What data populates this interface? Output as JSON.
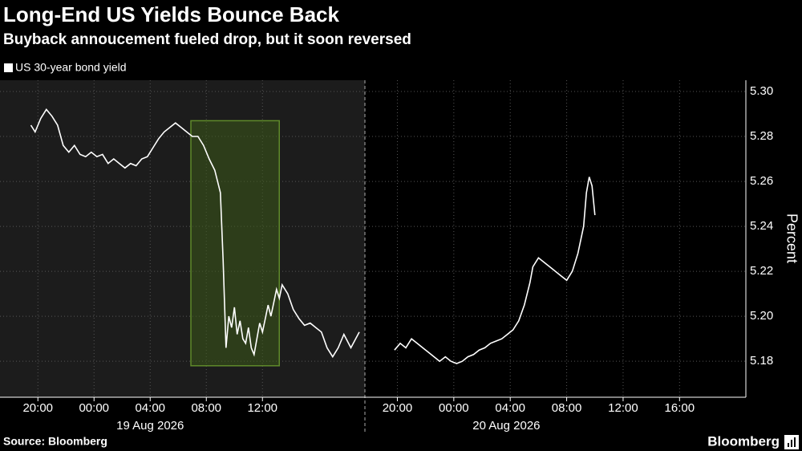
{
  "chart_data": {
    "type": "line",
    "title": "Long-End US Yields Bounce Back",
    "subtitle": "Buyback annoucement fueled drop, but it soon reversed",
    "series_name": "US 30-year bond yield",
    "color": "#ffffff",
    "ylabel": "Percent",
    "source": "Source: Bloomberg",
    "brand": "Bloomberg",
    "grid": true,
    "ylim": [
      5.164,
      5.305
    ],
    "yticks": [
      {
        "value": 5.18,
        "label": "5.18"
      },
      {
        "value": 5.2,
        "label": "5.20"
      },
      {
        "value": 5.22,
        "label": "5.22"
      },
      {
        "value": 5.24,
        "label": "5.24"
      },
      {
        "value": 5.26,
        "label": "5.26"
      },
      {
        "value": 5.28,
        "label": "5.28"
      },
      {
        "value": 5.3,
        "label": "5.30"
      }
    ],
    "panels": [
      {
        "date": "19 Aug 2026",
        "background": "#1c1c1c",
        "xlim": [
          -6.7,
          19.3
        ],
        "xticks": [
          {
            "value": -4,
            "label": "20:00"
          },
          {
            "value": 0,
            "label": "00:00"
          },
          {
            "value": 4,
            "label": "04:00"
          },
          {
            "value": 8,
            "label": "08:00"
          },
          {
            "value": 12,
            "label": "12:00"
          }
        ],
        "highlight": {
          "xlim": [
            6.9,
            13.2
          ],
          "ylim": [
            5.178,
            5.287
          ],
          "color": "#3d5a1a"
        },
        "x": [
          -4.5,
          -4.2,
          -3.8,
          -3.4,
          -3.0,
          -2.6,
          -2.2,
          -1.8,
          -1.4,
          -1.0,
          -0.6,
          -0.2,
          0.2,
          0.6,
          1.0,
          1.4,
          1.8,
          2.2,
          2.6,
          3.0,
          3.4,
          3.8,
          4.2,
          4.6,
          5.0,
          5.4,
          5.8,
          6.2,
          6.6,
          7.0,
          7.4,
          7.8,
          8.2,
          8.6,
          9.0,
          9.2,
          9.4,
          9.6,
          9.8,
          10.0,
          10.2,
          10.4,
          10.6,
          10.8,
          11.0,
          11.2,
          11.4,
          11.6,
          11.8,
          12.0,
          12.2,
          12.4,
          12.6,
          12.8,
          13.0,
          13.2,
          13.4,
          13.8,
          14.2,
          14.6,
          15.0,
          15.4,
          15.8,
          16.2,
          16.6,
          17.0,
          17.4,
          17.8,
          18.3,
          18.9
        ],
        "values": [
          5.285,
          5.282,
          5.288,
          5.292,
          5.289,
          5.285,
          5.276,
          5.273,
          5.276,
          5.272,
          5.271,
          5.273,
          5.271,
          5.272,
          5.268,
          5.27,
          5.268,
          5.266,
          5.268,
          5.267,
          5.27,
          5.271,
          5.275,
          5.279,
          5.282,
          5.284,
          5.286,
          5.284,
          5.282,
          5.28,
          5.28,
          5.276,
          5.27,
          5.265,
          5.255,
          5.225,
          5.186,
          5.2,
          5.195,
          5.204,
          5.192,
          5.198,
          5.19,
          5.188,
          5.195,
          5.186,
          5.183,
          5.19,
          5.197,
          5.193,
          5.199,
          5.205,
          5.2,
          5.206,
          5.212,
          5.208,
          5.214,
          5.21,
          5.203,
          5.199,
          5.196,
          5.197,
          5.195,
          5.193,
          5.186,
          5.182,
          5.186,
          5.192,
          5.186,
          5.193
        ]
      },
      {
        "date": "20 Aug 2026",
        "background": "#000000",
        "xlim": [
          -6.3,
          20.7
        ],
        "xticks": [
          {
            "value": -4,
            "label": "20:00"
          },
          {
            "value": 0,
            "label": "00:00"
          },
          {
            "value": 4,
            "label": "04:00"
          },
          {
            "value": 8,
            "label": "08:00"
          },
          {
            "value": 12,
            "label": "12:00"
          },
          {
            "value": 16,
            "label": "16:00"
          }
        ],
        "x": [
          -4.2,
          -3.8,
          -3.4,
          -3.0,
          -2.6,
          -2.2,
          -1.8,
          -1.4,
          -1.0,
          -0.6,
          -0.2,
          0.2,
          0.6,
          1.0,
          1.4,
          1.8,
          2.2,
          2.6,
          3.0,
          3.4,
          3.8,
          4.2,
          4.6,
          5.0,
          5.4,
          5.6,
          6.0,
          6.4,
          6.8,
          7.2,
          7.6,
          8.0,
          8.4,
          8.8,
          9.2,
          9.4,
          9.6,
          9.8,
          10.0
        ],
        "values": [
          5.185,
          5.188,
          5.186,
          5.19,
          5.188,
          5.186,
          5.184,
          5.182,
          5.18,
          5.182,
          5.18,
          5.179,
          5.18,
          5.182,
          5.183,
          5.185,
          5.186,
          5.188,
          5.189,
          5.19,
          5.192,
          5.194,
          5.198,
          5.205,
          5.215,
          5.222,
          5.226,
          5.224,
          5.222,
          5.22,
          5.218,
          5.216,
          5.22,
          5.228,
          5.24,
          5.255,
          5.262,
          5.258,
          5.245
        ]
      }
    ]
  }
}
